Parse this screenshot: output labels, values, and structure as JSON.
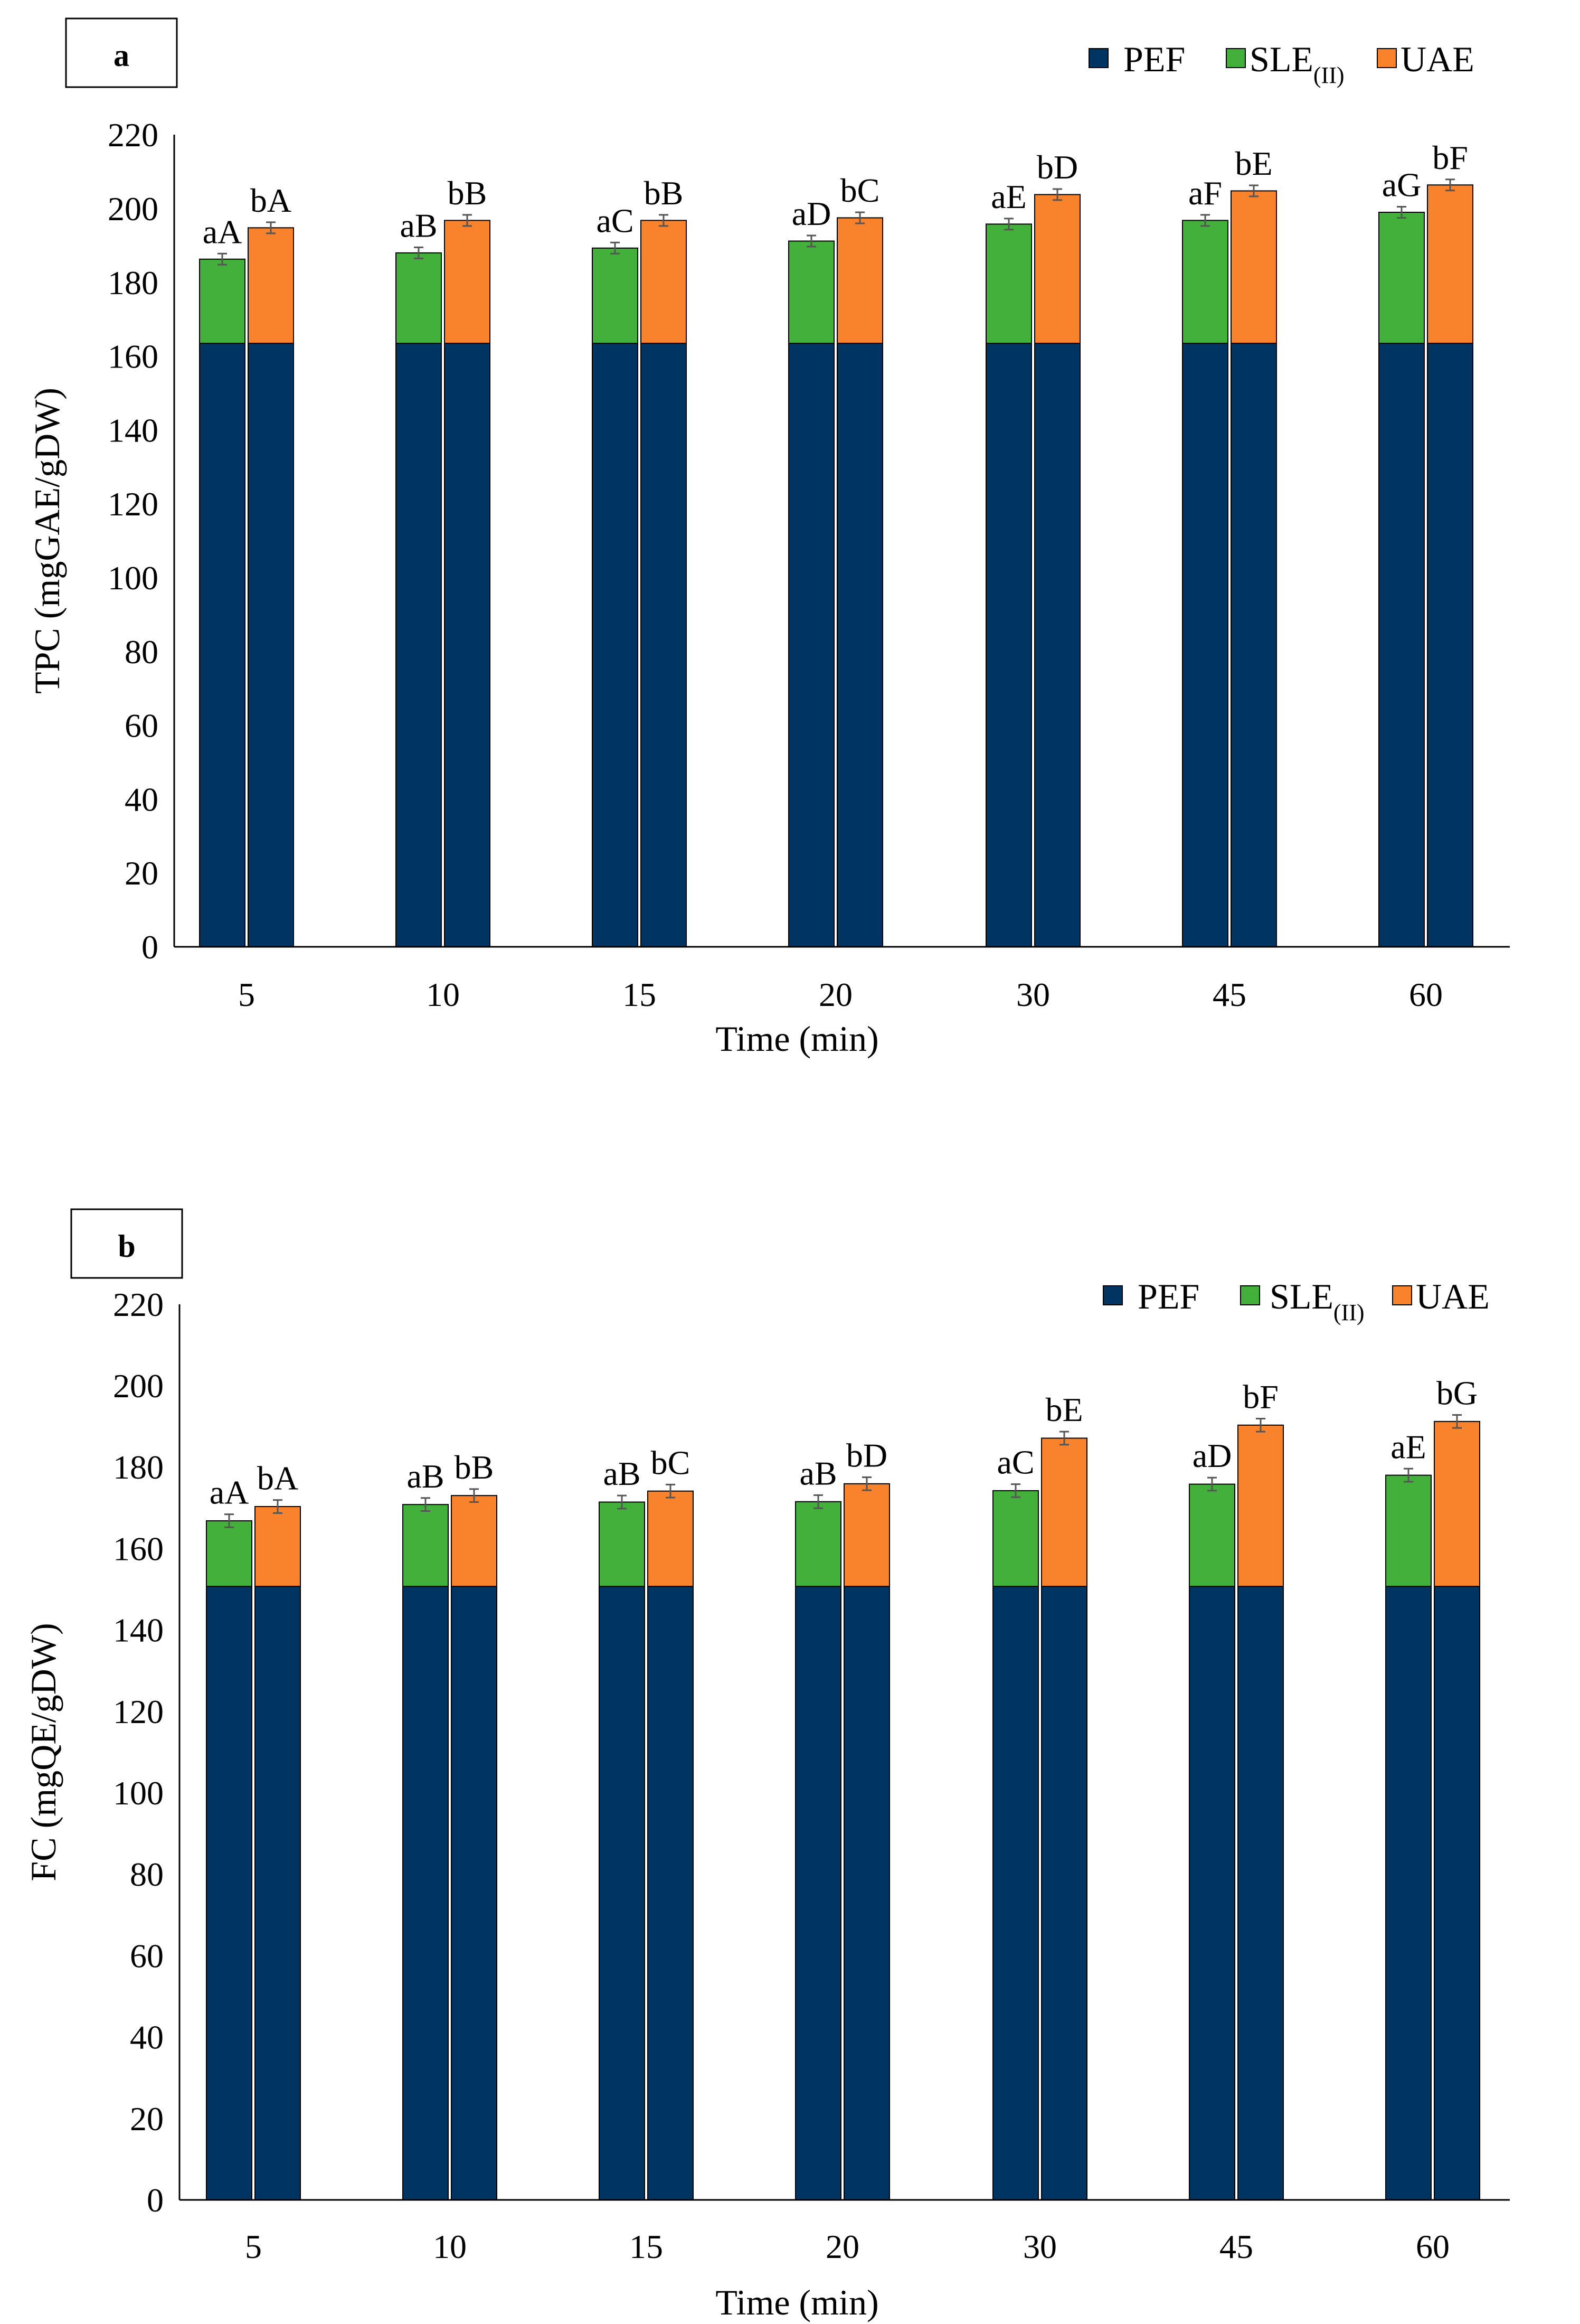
{
  "chart_data": [
    {
      "type": "bar",
      "stacked": true,
      "panel_label": "a",
      "xlabel": "Time (min)",
      "ylabel": "TPC (mgGAE/gDW)",
      "ylim": [
        0,
        220
      ],
      "ytick_step": 20,
      "categories": [
        "5",
        "10",
        "15",
        "20",
        "30",
        "45",
        "60"
      ],
      "legend": {
        "placement": "top-right",
        "items": [
          {
            "name": "PEF",
            "sub": "",
            "color": "#003462"
          },
          {
            "name": "SLE",
            "sub": "(II)",
            "color": "#43b03c"
          },
          {
            "name": "UAE",
            "sub": "",
            "color": "#f9822c"
          }
        ]
      },
      "base": {
        "name": "PEF",
        "value": 163.5
      },
      "series": [
        {
          "name": "SLE(II)",
          "totals": [
            186.3,
            188.0,
            189.3,
            191.2,
            195.8,
            196.8,
            199.0
          ],
          "errors": [
            1.5,
            1.5,
            1.5,
            1.5,
            1.5,
            1.5,
            1.5
          ],
          "labels": [
            "aA",
            "aB",
            "aC",
            "aD",
            "aE",
            "aF",
            "aG"
          ]
        },
        {
          "name": "UAE",
          "totals": [
            194.8,
            196.8,
            196.8,
            197.5,
            203.8,
            204.8,
            206.4
          ],
          "errors": [
            1.5,
            1.5,
            1.5,
            1.5,
            1.5,
            1.5,
            1.5
          ],
          "labels": [
            "bA",
            "bB",
            "bB",
            "bC",
            "bD",
            "bE",
            "bF"
          ]
        }
      ]
    },
    {
      "type": "bar",
      "stacked": true,
      "panel_label": "b",
      "xlabel": "Time (min)",
      "ylabel": "FC (mgQE/gDW)",
      "ylim": [
        0,
        220
      ],
      "ytick_step": 20,
      "categories": [
        "5",
        "10",
        "15",
        "20",
        "30",
        "45",
        "60"
      ],
      "legend": {
        "placement": "top-right",
        "items": [
          {
            "name": "PEF",
            "sub": "",
            "color": "#003462"
          },
          {
            "name": "SLE",
            "sub": "(II)",
            "color": "#43b03c"
          },
          {
            "name": "UAE",
            "sub": "",
            "color": "#f9822c"
          }
        ]
      },
      "base": {
        "name": "PEF",
        "value": 150.7
      },
      "series": [
        {
          "name": "SLE(II)",
          "totals": [
            166.8,
            170.8,
            171.4,
            171.5,
            174.2,
            175.8,
            178.0
          ],
          "errors": [
            1.6,
            1.6,
            1.6,
            1.6,
            1.6,
            1.6,
            1.6
          ],
          "labels": [
            "aA",
            "aB",
            "aB",
            "aB",
            "aC",
            "aD",
            "aE"
          ]
        },
        {
          "name": "UAE",
          "totals": [
            170.3,
            173.0,
            174.1,
            175.9,
            187.1,
            190.3,
            191.2
          ],
          "errors": [
            1.6,
            1.6,
            1.6,
            1.6,
            1.6,
            1.6,
            1.6
          ],
          "labels": [
            "bA",
            "bB",
            "bC",
            "bD",
            "bE",
            "bF",
            "bG"
          ]
        }
      ]
    }
  ]
}
